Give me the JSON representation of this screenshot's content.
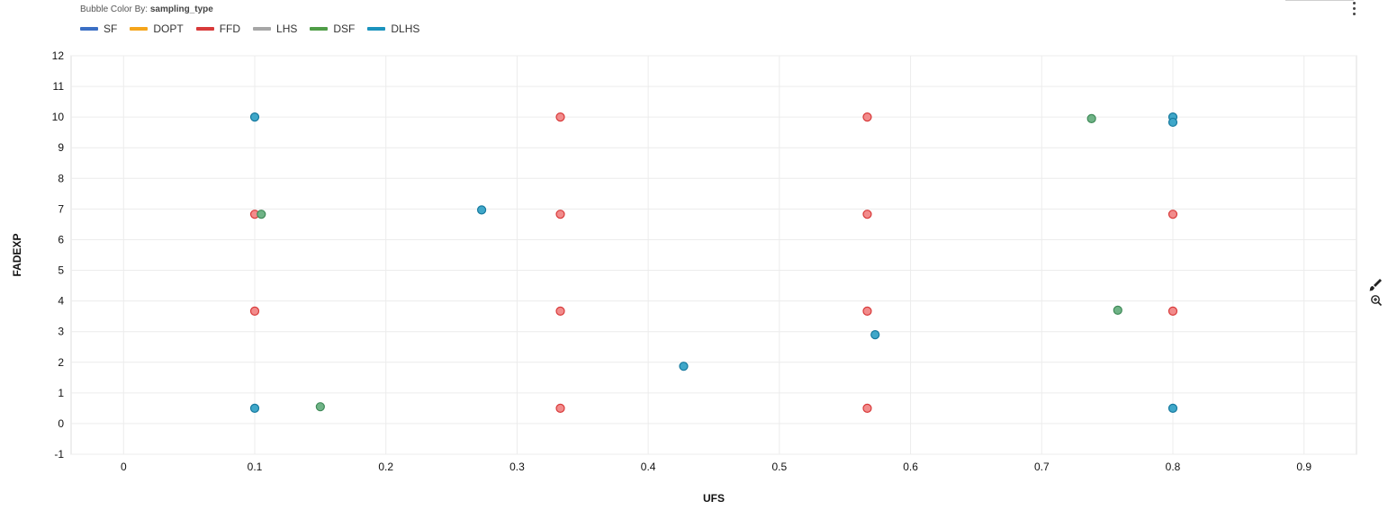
{
  "header": {
    "color_by_prefix": "Bubble Color By: ",
    "color_by_field": "sampling_type"
  },
  "legend": [
    {
      "label": "SF",
      "color": "#3b6fc4"
    },
    {
      "label": "DOPT",
      "color": "#f5a51b"
    },
    {
      "label": "FFD",
      "color": "#d83a3a"
    },
    {
      "label": "LHS",
      "color": "#a6a6a6"
    },
    {
      "label": "DSF",
      "color": "#4f9d47"
    },
    {
      "label": "DLHS",
      "color": "#1b93bd"
    }
  ],
  "tools": {
    "brush": "brush-icon",
    "zoom": "zoom-in-icon",
    "menu": "vertical-dots-menu-icon"
  },
  "chart_data": {
    "type": "scatter",
    "xlabel": "UFS",
    "ylabel": "FADEXP",
    "xlim": [
      -0.04,
      0.94
    ],
    "ylim": [
      -1,
      12
    ],
    "xticks": [
      0,
      0.1,
      0.2,
      0.3,
      0.4,
      0.5,
      0.6,
      0.7,
      0.8,
      0.9
    ],
    "xtick_labels": [
      "0",
      "0.1",
      "0.2",
      "0.3",
      "0.4",
      "0.5",
      "0.6",
      "0.7",
      "0.8",
      "0.9"
    ],
    "yticks": [
      -1,
      0,
      1,
      2,
      3,
      4,
      5,
      6,
      7,
      8,
      9,
      10,
      11,
      12
    ],
    "ytick_labels": [
      "-1",
      "0",
      "1",
      "2",
      "3",
      "4",
      "5",
      "6",
      "7",
      "8",
      "9",
      "10",
      "11",
      "12"
    ],
    "grid": true,
    "series": [
      {
        "name": "FFD",
        "fill": "#f28b8b",
        "stroke": "#d83a3a",
        "points": [
          [
            0.1,
            6.83
          ],
          [
            0.1,
            3.67
          ],
          [
            0.333,
            10.0
          ],
          [
            0.333,
            6.83
          ],
          [
            0.333,
            3.67
          ],
          [
            0.333,
            0.5
          ],
          [
            0.567,
            10.0
          ],
          [
            0.567,
            6.83
          ],
          [
            0.567,
            3.67
          ],
          [
            0.567,
            0.5
          ],
          [
            0.8,
            6.83
          ],
          [
            0.8,
            3.67
          ]
        ]
      },
      {
        "name": "DSF",
        "fill": "#6fb386",
        "stroke": "#3f8a58",
        "points": [
          [
            0.105,
            6.83
          ],
          [
            0.15,
            0.55
          ],
          [
            0.738,
            9.95
          ],
          [
            0.758,
            3.7
          ]
        ]
      },
      {
        "name": "DLHS",
        "fill": "#3fa7c9",
        "stroke": "#16799e",
        "points": [
          [
            0.1,
            10.0
          ],
          [
            0.1,
            0.5
          ],
          [
            0.273,
            6.97
          ],
          [
            0.427,
            1.87
          ],
          [
            0.573,
            2.9
          ],
          [
            0.8,
            10.0
          ],
          [
            0.8,
            9.83
          ],
          [
            0.8,
            0.5
          ]
        ]
      }
    ]
  }
}
